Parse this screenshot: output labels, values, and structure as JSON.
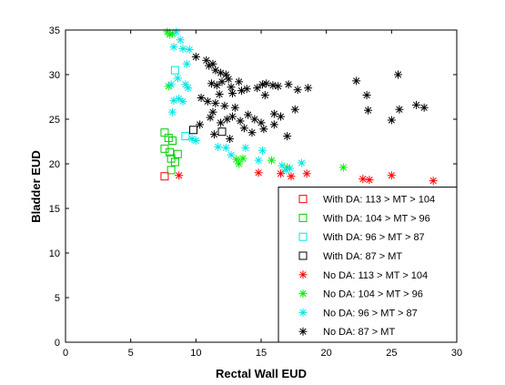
{
  "chart_data": {
    "type": "scatter",
    "title": "",
    "xlabel": "Rectal Wall EUD",
    "ylabel": "Bladder EUD",
    "xlim": [
      0,
      30
    ],
    "ylim": [
      0,
      35
    ],
    "xticks": [
      0,
      5,
      10,
      15,
      20,
      25,
      30
    ],
    "yticks": [
      0,
      5,
      10,
      15,
      20,
      25,
      30,
      35
    ],
    "grid": false,
    "legend_position": "bottom-right",
    "series": [
      {
        "name": "With DA: 113 > MT > 104",
        "marker": "square",
        "color": "#ff0000",
        "points": [
          [
            7.6,
            18.6
          ]
        ]
      },
      {
        "name": "With DA: 104 > MT > 96",
        "marker": "square",
        "color": "#00cc00",
        "points": [
          [
            7.6,
            23.5
          ],
          [
            7.9,
            22.9
          ],
          [
            8.2,
            22.6
          ],
          [
            7.6,
            21.7
          ],
          [
            8.0,
            21.3
          ],
          [
            8.6,
            21.1
          ],
          [
            8.1,
            20.6
          ],
          [
            8.4,
            20.2
          ],
          [
            8.1,
            19.3
          ]
        ]
      },
      {
        "name": "With DA: 96 > MT > 87",
        "marker": "square",
        "color": "#00e5e5",
        "points": [
          [
            8.4,
            30.5
          ],
          [
            9.2,
            23.1
          ]
        ]
      },
      {
        "name": "With DA: 87 > MT",
        "marker": "square",
        "color": "#000000",
        "points": [
          [
            9.8,
            23.8
          ],
          [
            12.0,
            23.6
          ]
        ]
      },
      {
        "name": "No DA: 113 > MT > 104",
        "marker": "star",
        "color": "#ff0000",
        "points": [
          [
            8.7,
            18.7
          ],
          [
            14.8,
            19.0
          ],
          [
            16.5,
            18.9
          ],
          [
            17.3,
            18.6
          ],
          [
            18.5,
            18.9
          ],
          [
            22.8,
            18.3
          ],
          [
            23.3,
            18.2
          ],
          [
            25.0,
            18.7
          ],
          [
            28.2,
            18.1
          ]
        ]
      },
      {
        "name": "No DA: 104 > MT > 96",
        "marker": "star",
        "color": "#00ee00",
        "points": [
          [
            7.8,
            34.8
          ],
          [
            8.0,
            34.5
          ],
          [
            8.2,
            34.6
          ],
          [
            7.9,
            28.7
          ],
          [
            13.1,
            20.5
          ],
          [
            13.3,
            20.0
          ],
          [
            13.6,
            20.6
          ],
          [
            15.8,
            20.4
          ],
          [
            17.0,
            19.6
          ],
          [
            21.3,
            19.6
          ]
        ]
      },
      {
        "name": "No DA: 96 > MT > 87",
        "marker": "star",
        "color": "#00e5e5",
        "points": [
          [
            8.5,
            34.8
          ],
          [
            8.8,
            33.9
          ],
          [
            8.3,
            33.1
          ],
          [
            9.0,
            32.9
          ],
          [
            9.5,
            32.8
          ],
          [
            9.3,
            31.2
          ],
          [
            8.6,
            29.6
          ],
          [
            8.1,
            28.9
          ],
          [
            9.2,
            28.9
          ],
          [
            9.4,
            28.5
          ],
          [
            8.7,
            27.3
          ],
          [
            8.3,
            27.1
          ],
          [
            9.0,
            27.0
          ],
          [
            8.2,
            25.8
          ],
          [
            9.7,
            22.8
          ],
          [
            10.0,
            22.6
          ],
          [
            11.7,
            21.9
          ],
          [
            12.3,
            21.8
          ],
          [
            13.8,
            21.8
          ],
          [
            15.1,
            21.5
          ],
          [
            12.7,
            21.0
          ],
          [
            14.8,
            20.4
          ],
          [
            16.6,
            19.8
          ],
          [
            18.1,
            20.1
          ],
          [
            16.9,
            19.3
          ],
          [
            17.2,
            19.5
          ]
        ]
      },
      {
        "name": "No DA: 87 > MT",
        "marker": "star",
        "color": "#000000",
        "points": [
          [
            10.0,
            32.0
          ],
          [
            10.8,
            31.6
          ],
          [
            11.0,
            31.0
          ],
          [
            11.3,
            31.2
          ],
          [
            11.5,
            30.5
          ],
          [
            11.9,
            30.2
          ],
          [
            12.3,
            30.0
          ],
          [
            12.5,
            29.5
          ],
          [
            12.0,
            29.2
          ],
          [
            11.2,
            29.0
          ],
          [
            11.6,
            28.8
          ],
          [
            12.7,
            28.6
          ],
          [
            13.3,
            29.2
          ],
          [
            13.5,
            28.2
          ],
          [
            13.9,
            28.4
          ],
          [
            12.8,
            27.9
          ],
          [
            11.8,
            27.8
          ],
          [
            10.4,
            27.4
          ],
          [
            10.9,
            27.0
          ],
          [
            11.5,
            26.8
          ],
          [
            12.2,
            26.5
          ],
          [
            13.0,
            26.3
          ],
          [
            11.3,
            25.8
          ],
          [
            11.1,
            25.2
          ],
          [
            12.4,
            25.0
          ],
          [
            12.8,
            25.3
          ],
          [
            11.9,
            24.6
          ],
          [
            13.4,
            24.8
          ],
          [
            14.0,
            25.5
          ],
          [
            14.5,
            25.0
          ],
          [
            15.0,
            24.6
          ],
          [
            13.7,
            24.0
          ],
          [
            14.3,
            23.5
          ],
          [
            15.2,
            23.9
          ],
          [
            11.4,
            23.3
          ],
          [
            12.6,
            22.8
          ],
          [
            10.3,
            24.4
          ],
          [
            14.7,
            28.5
          ],
          [
            15.1,
            28.9
          ],
          [
            15.4,
            29.0
          ],
          [
            15.3,
            27.7
          ],
          [
            15.9,
            28.8
          ],
          [
            16.3,
            28.7
          ],
          [
            17.1,
            28.9
          ],
          [
            17.8,
            28.3
          ],
          [
            18.6,
            28.5
          ],
          [
            16.0,
            25.6
          ],
          [
            16.5,
            25.3
          ],
          [
            16.0,
            24.4
          ],
          [
            17.0,
            23.1
          ],
          [
            17.6,
            26.1
          ],
          [
            22.3,
            29.3
          ],
          [
            23.1,
            27.7
          ],
          [
            23.2,
            26.0
          ],
          [
            25.5,
            30.0
          ],
          [
            25.6,
            26.1
          ],
          [
            25.0,
            24.9
          ],
          [
            26.9,
            26.6
          ],
          [
            27.5,
            26.3
          ]
        ]
      }
    ]
  }
}
